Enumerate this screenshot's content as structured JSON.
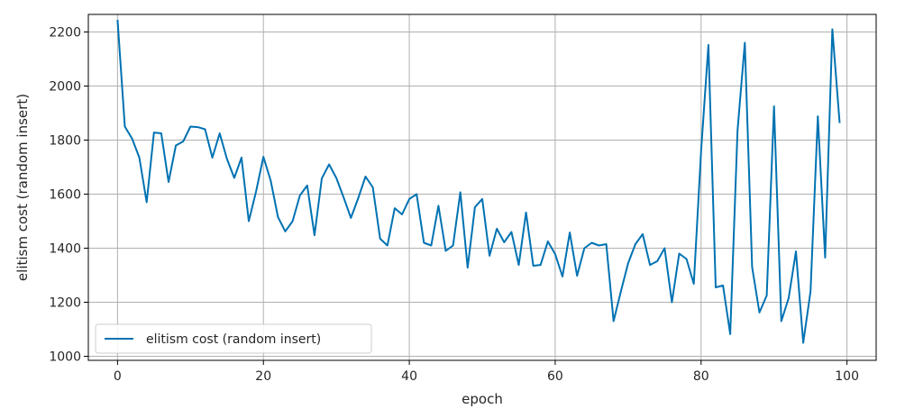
{
  "chart_data": {
    "type": "line",
    "title": "",
    "xlabel": "epoch",
    "ylabel": "elitism cost (random insert)",
    "xlim": [
      -4,
      104
    ],
    "ylim": [
      985,
      2265
    ],
    "xticks": [
      0,
      20,
      40,
      60,
      80,
      100
    ],
    "yticks": [
      1000,
      1200,
      1400,
      1600,
      1800,
      2000,
      2200
    ],
    "grid": true,
    "legend_position": "lower-left",
    "series": [
      {
        "name": "elitism cost (random insert)",
        "color": "#0072b2",
        "x": [
          0,
          1,
          2,
          3,
          4,
          5,
          6,
          7,
          8,
          9,
          10,
          11,
          12,
          13,
          14,
          15,
          16,
          17,
          18,
          19,
          20,
          21,
          22,
          23,
          24,
          25,
          26,
          27,
          28,
          29,
          30,
          31,
          32,
          33,
          34,
          35,
          36,
          37,
          38,
          39,
          40,
          41,
          42,
          43,
          44,
          45,
          46,
          47,
          48,
          49,
          50,
          51,
          52,
          53,
          54,
          55,
          56,
          57,
          58,
          59,
          60,
          61,
          62,
          63,
          64,
          65,
          66,
          67,
          68,
          69,
          70,
          71,
          72,
          73,
          74,
          75,
          76,
          77,
          78,
          79,
          80,
          81,
          82,
          83,
          84,
          85,
          86,
          87,
          88,
          89,
          90,
          91,
          92,
          93,
          94,
          95,
          96,
          97,
          98,
          99
        ],
        "y": [
          2245,
          1850,
          1805,
          1735,
          1570,
          1828,
          1825,
          1645,
          1780,
          1795,
          1850,
          1848,
          1840,
          1735,
          1825,
          1730,
          1660,
          1735,
          1500,
          1610,
          1738,
          1650,
          1515,
          1462,
          1500,
          1595,
          1632,
          1448,
          1658,
          1710,
          1660,
          1588,
          1512,
          1585,
          1665,
          1625,
          1435,
          1410,
          1548,
          1525,
          1582,
          1600,
          1420,
          1410,
          1557,
          1390,
          1410,
          1607,
          1328,
          1552,
          1582,
          1372,
          1472,
          1422,
          1460,
          1338,
          1532,
          1335,
          1338,
          1425,
          1378,
          1295,
          1458,
          1298,
          1400,
          1420,
          1410,
          1415,
          1130,
          1240,
          1345,
          1415,
          1452,
          1338,
          1352,
          1400,
          1200,
          1380,
          1360,
          1268,
          1760,
          2152,
          1255,
          1262,
          1082,
          1835,
          2160,
          1330,
          1162,
          1225,
          1925,
          1130,
          1215,
          1388,
          1050,
          1240,
          1888,
          1365,
          2210,
          1863
        ]
      }
    ]
  }
}
